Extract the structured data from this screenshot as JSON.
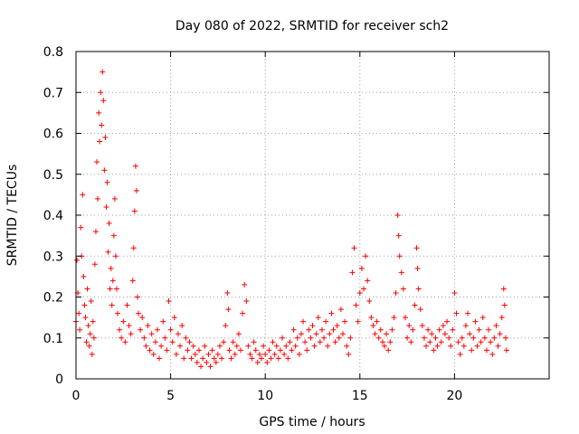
{
  "chart_data": {
    "type": "scatter",
    "title": "Day 080 of 2022, SRMTID for receiver sch2",
    "xlabel": "GPS time / hours",
    "ylabel": "SRMTID / TECUs",
    "xlim": [
      0,
      25
    ],
    "ylim": [
      0,
      0.8
    ],
    "xticks": [
      0,
      5,
      10,
      15,
      20
    ],
    "yticks": [
      0,
      0.1,
      0.2,
      0.3,
      0.4,
      0.5,
      0.6,
      0.7,
      0.8
    ],
    "xtick_labels": [
      "0",
      "5",
      "10",
      "15",
      "20"
    ],
    "ytick_labels": [
      "0",
      "0.1",
      "0.2",
      "0.3",
      "0.4",
      "0.5",
      "0.6",
      "0.7",
      "0.8"
    ],
    "grid": true,
    "marker": "+",
    "color": "#ff0000",
    "series": [
      {
        "name": "sch2",
        "points": [
          [
            0.0,
            0.14
          ],
          [
            0.05,
            0.29
          ],
          [
            0.1,
            0.21
          ],
          [
            0.15,
            0.16
          ],
          [
            0.2,
            0.12
          ],
          [
            0.25,
            0.37
          ],
          [
            0.3,
            0.3
          ],
          [
            0.35,
            0.45
          ],
          [
            0.4,
            0.25
          ],
          [
            0.45,
            0.18
          ],
          [
            0.5,
            0.15
          ],
          [
            0.55,
            0.09
          ],
          [
            0.6,
            0.22
          ],
          [
            0.65,
            0.13
          ],
          [
            0.7,
            0.08
          ],
          [
            0.75,
            0.11
          ],
          [
            0.8,
            0.19
          ],
          [
            0.85,
            0.06
          ],
          [
            0.9,
            0.14
          ],
          [
            0.95,
            0.1
          ],
          [
            1.0,
            0.28
          ],
          [
            1.05,
            0.36
          ],
          [
            1.1,
            0.53
          ],
          [
            1.15,
            0.44
          ],
          [
            1.2,
            0.65
          ],
          [
            1.25,
            0.58
          ],
          [
            1.3,
            0.7
          ],
          [
            1.35,
            0.62
          ],
          [
            1.4,
            0.75
          ],
          [
            1.45,
            0.68
          ],
          [
            1.5,
            0.51
          ],
          [
            1.55,
            0.59
          ],
          [
            1.6,
            0.42
          ],
          [
            1.65,
            0.48
          ],
          [
            1.7,
            0.31
          ],
          [
            1.75,
            0.38
          ],
          [
            1.8,
            0.22
          ],
          [
            1.85,
            0.27
          ],
          [
            1.9,
            0.18
          ],
          [
            1.95,
            0.24
          ],
          [
            2.0,
            0.35
          ],
          [
            2.05,
            0.44
          ],
          [
            2.1,
            0.3
          ],
          [
            2.15,
            0.22
          ],
          [
            2.2,
            0.16
          ],
          [
            2.3,
            0.12
          ],
          [
            2.4,
            0.1
          ],
          [
            2.5,
            0.14
          ],
          [
            2.6,
            0.09
          ],
          [
            2.7,
            0.18
          ],
          [
            2.8,
            0.13
          ],
          [
            2.9,
            0.11
          ],
          [
            3.0,
            0.24
          ],
          [
            3.05,
            0.32
          ],
          [
            3.1,
            0.41
          ],
          [
            3.15,
            0.52
          ],
          [
            3.2,
            0.46
          ],
          [
            3.25,
            0.2
          ],
          [
            3.3,
            0.16
          ],
          [
            3.4,
            0.12
          ],
          [
            3.5,
            0.15
          ],
          [
            3.6,
            0.1
          ],
          [
            3.7,
            0.08
          ],
          [
            3.8,
            0.13
          ],
          [
            3.9,
            0.07
          ],
          [
            4.0,
            0.11
          ],
          [
            4.1,
            0.06
          ],
          [
            4.2,
            0.09
          ],
          [
            4.3,
            0.12
          ],
          [
            4.4,
            0.05
          ],
          [
            4.5,
            0.08
          ],
          [
            4.6,
            0.14
          ],
          [
            4.7,
            0.1
          ],
          [
            4.8,
            0.07
          ],
          [
            4.9,
            0.19
          ],
          [
            5.0,
            0.12
          ],
          [
            5.1,
            0.09
          ],
          [
            5.2,
            0.15
          ],
          [
            5.3,
            0.06
          ],
          [
            5.4,
            0.11
          ],
          [
            5.5,
            0.08
          ],
          [
            5.6,
            0.13
          ],
          [
            5.7,
            0.05
          ],
          [
            5.8,
            0.1
          ],
          [
            5.9,
            0.07
          ],
          [
            6.0,
            0.09
          ],
          [
            6.1,
            0.05
          ],
          [
            6.2,
            0.08
          ],
          [
            6.3,
            0.06
          ],
          [
            6.4,
            0.04
          ],
          [
            6.5,
            0.07
          ],
          [
            6.6,
            0.03
          ],
          [
            6.7,
            0.05
          ],
          [
            6.8,
            0.08
          ],
          [
            6.9,
            0.04
          ],
          [
            7.0,
            0.06
          ],
          [
            7.1,
            0.03
          ],
          [
            7.2,
            0.07
          ],
          [
            7.3,
            0.05
          ],
          [
            7.4,
            0.04
          ],
          [
            7.5,
            0.06
          ],
          [
            7.6,
            0.08
          ],
          [
            7.7,
            0.05
          ],
          [
            7.8,
            0.09
          ],
          [
            7.9,
            0.13
          ],
          [
            8.0,
            0.21
          ],
          [
            8.05,
            0.17
          ],
          [
            8.1,
            0.07
          ],
          [
            8.2,
            0.05
          ],
          [
            8.3,
            0.09
          ],
          [
            8.4,
            0.06
          ],
          [
            8.5,
            0.08
          ],
          [
            8.6,
            0.11
          ],
          [
            8.7,
            0.07
          ],
          [
            8.8,
            0.16
          ],
          [
            8.9,
            0.23
          ],
          [
            9.0,
            0.19
          ],
          [
            9.1,
            0.08
          ],
          [
            9.2,
            0.06
          ],
          [
            9.3,
            0.05
          ],
          [
            9.4,
            0.09
          ],
          [
            9.5,
            0.07
          ],
          [
            9.6,
            0.04
          ],
          [
            9.7,
            0.06
          ],
          [
            9.8,
            0.05
          ],
          [
            9.9,
            0.08
          ],
          [
            10.0,
            0.06
          ],
          [
            10.1,
            0.04
          ],
          [
            10.2,
            0.07
          ],
          [
            10.3,
            0.05
          ],
          [
            10.4,
            0.09
          ],
          [
            10.5,
            0.06
          ],
          [
            10.6,
            0.08
          ],
          [
            10.7,
            0.05
          ],
          [
            10.8,
            0.07
          ],
          [
            10.9,
            0.1
          ],
          [
            11.0,
            0.06
          ],
          [
            11.1,
            0.08
          ],
          [
            11.2,
            0.05
          ],
          [
            11.3,
            0.09
          ],
          [
            11.4,
            0.07
          ],
          [
            11.5,
            0.12
          ],
          [
            11.6,
            0.08
          ],
          [
            11.7,
            0.1
          ],
          [
            11.8,
            0.06
          ],
          [
            11.9,
            0.11
          ],
          [
            12.0,
            0.14
          ],
          [
            12.1,
            0.09
          ],
          [
            12.2,
            0.07
          ],
          [
            12.3,
            0.12
          ],
          [
            12.4,
            0.1
          ],
          [
            12.5,
            0.13
          ],
          [
            12.6,
            0.08
          ],
          [
            12.7,
            0.11
          ],
          [
            12.8,
            0.15
          ],
          [
            12.9,
            0.09
          ],
          [
            13.0,
            0.12
          ],
          [
            13.1,
            0.1
          ],
          [
            13.2,
            0.14
          ],
          [
            13.3,
            0.08
          ],
          [
            13.4,
            0.11
          ],
          [
            13.5,
            0.16
          ],
          [
            13.6,
            0.12
          ],
          [
            13.7,
            0.09
          ],
          [
            13.8,
            0.13
          ],
          [
            13.9,
            0.1
          ],
          [
            14.0,
            0.17
          ],
          [
            14.1,
            0.11
          ],
          [
            14.2,
            0.14
          ],
          [
            14.3,
            0.08
          ],
          [
            14.4,
            0.06
          ],
          [
            14.5,
            0.1
          ],
          [
            14.6,
            0.26
          ],
          [
            14.7,
            0.32
          ],
          [
            14.8,
            0.18
          ],
          [
            14.9,
            0.14
          ],
          [
            15.0,
            0.21
          ],
          [
            15.1,
            0.27
          ],
          [
            15.2,
            0.22
          ],
          [
            15.3,
            0.3
          ],
          [
            15.4,
            0.24
          ],
          [
            15.5,
            0.19
          ],
          [
            15.6,
            0.15
          ],
          [
            15.7,
            0.13
          ],
          [
            15.8,
            0.11
          ],
          [
            15.9,
            0.14
          ],
          [
            16.0,
            0.1
          ],
          [
            16.1,
            0.12
          ],
          [
            16.2,
            0.09
          ],
          [
            16.3,
            0.08
          ],
          [
            16.4,
            0.11
          ],
          [
            16.5,
            0.07
          ],
          [
            16.6,
            0.09
          ],
          [
            16.7,
            0.12
          ],
          [
            16.8,
            0.15
          ],
          [
            16.9,
            0.21
          ],
          [
            17.0,
            0.4
          ],
          [
            17.05,
            0.35
          ],
          [
            17.1,
            0.3
          ],
          [
            17.2,
            0.26
          ],
          [
            17.3,
            0.22
          ],
          [
            17.4,
            0.15
          ],
          [
            17.5,
            0.1
          ],
          [
            17.6,
            0.13
          ],
          [
            17.7,
            0.09
          ],
          [
            17.8,
            0.12
          ],
          [
            17.9,
            0.18
          ],
          [
            18.0,
            0.32
          ],
          [
            18.05,
            0.27
          ],
          [
            18.1,
            0.22
          ],
          [
            18.2,
            0.17
          ],
          [
            18.3,
            0.13
          ],
          [
            18.4,
            0.1
          ],
          [
            18.5,
            0.08
          ],
          [
            18.6,
            0.12
          ],
          [
            18.7,
            0.09
          ],
          [
            18.8,
            0.11
          ],
          [
            18.9,
            0.07
          ],
          [
            19.0,
            0.1
          ],
          [
            19.1,
            0.08
          ],
          [
            19.2,
            0.12
          ],
          [
            19.3,
            0.09
          ],
          [
            19.4,
            0.13
          ],
          [
            19.5,
            0.11
          ],
          [
            19.6,
            0.14
          ],
          [
            19.7,
            0.1
          ],
          [
            19.8,
            0.08
          ],
          [
            19.9,
            0.12
          ],
          [
            20.0,
            0.21
          ],
          [
            20.1,
            0.16
          ],
          [
            20.2,
            0.09
          ],
          [
            20.3,
            0.06
          ],
          [
            20.4,
            0.1
          ],
          [
            20.5,
            0.08
          ],
          [
            20.6,
            0.13
          ],
          [
            20.7,
            0.16
          ],
          [
            20.8,
            0.11
          ],
          [
            20.9,
            0.07
          ],
          [
            21.0,
            0.1
          ],
          [
            21.1,
            0.14
          ],
          [
            21.2,
            0.08
          ],
          [
            21.3,
            0.12
          ],
          [
            21.4,
            0.09
          ],
          [
            21.5,
            0.15
          ],
          [
            21.6,
            0.1
          ],
          [
            21.7,
            0.07
          ],
          [
            21.8,
            0.12
          ],
          [
            21.9,
            0.09
          ],
          [
            22.0,
            0.06
          ],
          [
            22.1,
            0.1
          ],
          [
            22.2,
            0.13
          ],
          [
            22.3,
            0.08
          ],
          [
            22.4,
            0.11
          ],
          [
            22.5,
            0.15
          ],
          [
            22.6,
            0.22
          ],
          [
            22.65,
            0.18
          ],
          [
            22.7,
            0.1
          ],
          [
            22.75,
            0.07
          ]
        ]
      }
    ]
  }
}
